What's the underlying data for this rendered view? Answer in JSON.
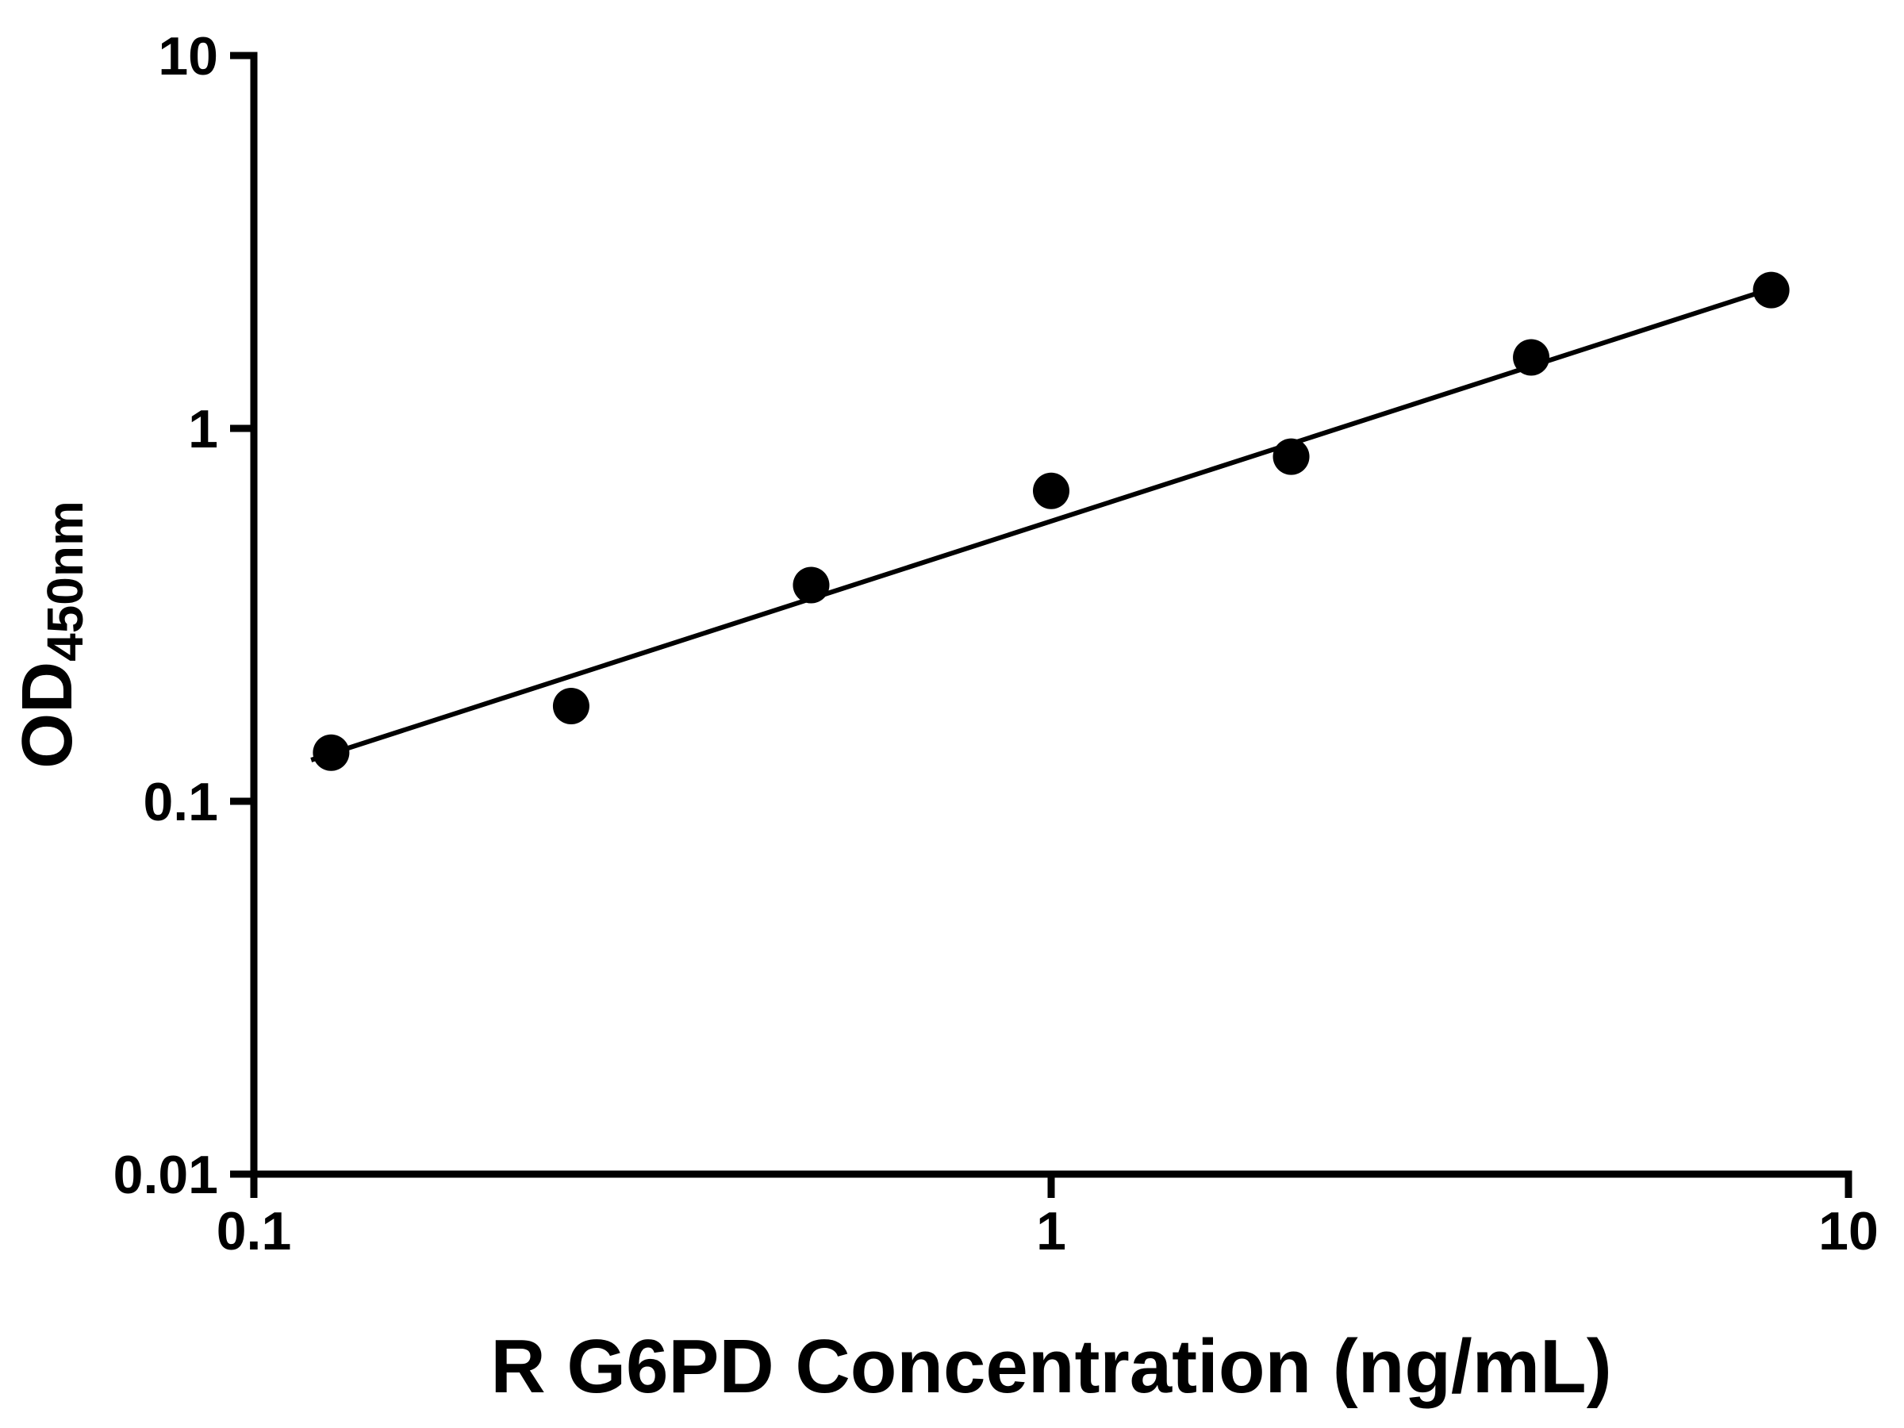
{
  "chart_data": {
    "type": "scatter",
    "title": "",
    "xlabel": "R G6PD Concentration (ng/mL)",
    "ylabel_main": "OD",
    "ylabel_sub": "450nm",
    "x_scale": "log",
    "y_scale": "log",
    "xlim": [
      0.1,
      10
    ],
    "ylim": [
      0.01,
      10
    ],
    "x_ticks": [
      0.1,
      1,
      10
    ],
    "x_tick_labels": [
      "0.1",
      "1",
      "10"
    ],
    "y_ticks": [
      0.01,
      0.1,
      1,
      10
    ],
    "y_tick_labels": [
      "0.01",
      "0.1",
      "1",
      "10"
    ],
    "x": [
      0.125,
      0.25,
      0.5,
      1,
      2,
      4,
      8
    ],
    "y": [
      0.135,
      0.18,
      0.38,
      0.68,
      0.84,
      1.55,
      2.35
    ],
    "fit_line": {
      "x": [
        0.118,
        8.3
      ],
      "y": [
        0.129,
        2.43
      ]
    },
    "grid": false,
    "legend": "none",
    "marker_color": "#000000",
    "line_color": "#000000",
    "axis_color": "#000000",
    "background": "#ffffff"
  }
}
